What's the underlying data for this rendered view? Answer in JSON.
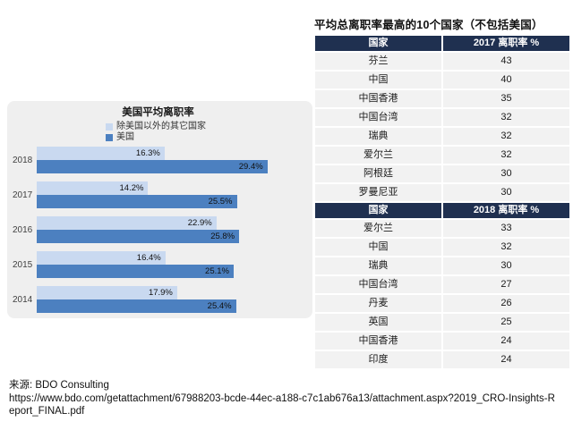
{
  "page": {
    "background": "#ffffff"
  },
  "chart_data": [
    {
      "type": "bar",
      "orientation": "horizontal",
      "title": "美国平均离职率",
      "categories": [
        "2018",
        "2017",
        "2016",
        "2015",
        "2014"
      ],
      "series": [
        {
          "name": "除美国以外的其它国家",
          "color": "#c9d9f0",
          "values": [
            16.3,
            14.2,
            22.9,
            16.4,
            17.9
          ]
        },
        {
          "name": "美国",
          "color": "#4c80c0",
          "values": [
            29.4,
            25.5,
            25.8,
            25.1,
            25.4
          ]
        }
      ],
      "value_suffix": "%",
      "xlim": [
        0,
        34
      ],
      "legend_position": "top",
      "grid": false,
      "panel_background": "#efefef",
      "label_color": "#111111"
    },
    {
      "type": "table",
      "title": "平均总离职率最高的10个国家（不包括美国）",
      "header_background": "#1f3050",
      "row_background": "#f2f2f2",
      "sections": [
        {
          "columns": [
            "国家",
            "2017 离职率 %"
          ],
          "rows": [
            [
              "芬兰",
              43
            ],
            [
              "中国",
              40
            ],
            [
              "中国香港",
              35
            ],
            [
              "中国台湾",
              32
            ],
            [
              "瑞典",
              32
            ],
            [
              "爱尔兰",
              32
            ],
            [
              "阿根廷",
              30
            ],
            [
              "罗曼尼亚",
              30
            ]
          ]
        },
        {
          "columns": [
            "国家",
            "2018 离职率 %"
          ],
          "rows": [
            [
              "爱尔兰",
              33
            ],
            [
              "中国",
              32
            ],
            [
              "瑞典",
              30
            ],
            [
              "中国台湾",
              27
            ],
            [
              "丹麦",
              26
            ],
            [
              "英国",
              25
            ],
            [
              "中国香港",
              24
            ],
            [
              "印度",
              24
            ]
          ]
        }
      ]
    }
  ],
  "source": {
    "label": "来源: BDO Consulting",
    "url": "https://www.bdo.com/getattachment/67988203-bcde-44ec-a188-c7c1ab676a13/attachment.aspx?2019_CRO-Insights-Report_FINAL.pdf"
  }
}
